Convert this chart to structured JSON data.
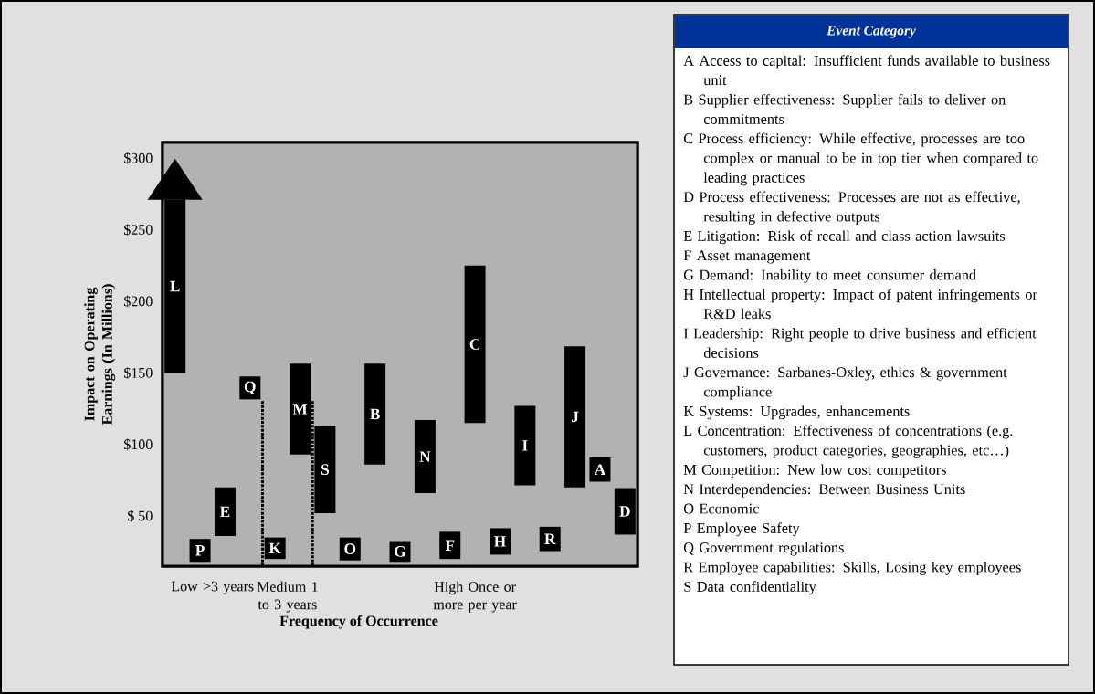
{
  "chart_data": {
    "type": "bar",
    "xlabel": "Frequency of Occurrence",
    "ylabel": "Impact on Operating Earnings (In Millions)",
    "ylim": [
      15,
      311
    ],
    "yticks": [
      {
        "value": 50,
        "label": "$ 50"
      },
      {
        "value": 100,
        "label": "$100"
      },
      {
        "value": 150,
        "label": "$150"
      },
      {
        "value": 200,
        "label": "$200"
      },
      {
        "value": 250,
        "label": "$250"
      },
      {
        "value": 300,
        "label": "$300"
      }
    ],
    "categories": [
      null,
      null,
      null,
      null,
      null,
      null,
      null,
      null,
      null,
      null,
      null,
      null,
      null,
      null,
      null,
      null,
      null,
      null,
      null
    ],
    "series": [
      {
        "color": "#000000",
        "base": [
          150,
          18,
          36,
          131.5,
          20,
          93,
          52,
          19,
          86,
          18,
          66,
          20,
          115,
          23,
          71.5,
          25.5,
          70,
          74,
          37
        ],
        "values": [
          121,
          16,
          34,
          16,
          15,
          63.5,
          61,
          16,
          70.5,
          14.5,
          51,
          19,
          110,
          18.5,
          55.5,
          17,
          98.5,
          17,
          32.5
        ],
        "value_labels": [
          "L",
          "P",
          "E",
          "Q",
          "K",
          "M",
          "S",
          "O",
          "B",
          "G",
          "N",
          "F",
          "C",
          "H",
          "I",
          "R",
          "J",
          "A",
          "D"
        ]
      }
    ],
    "legend_title": "Event Category",
    "annotations": [
      "Low >3 years",
      "Medium 1 to 3 years",
      "High Once or more per year",
      "A Access to capital: Insufficient funds available to business unit",
      "B Supplier effectiveness: Supplier fails to deliver on commitments",
      "C Process efficiency: While effective, processes are too complex or manual to be in top tier when compared to leading practices",
      "D Process effectiveness: Processes are not as effective, resulting in defective outputs",
      "E Litigation: Risk of recall and class action lawsuits",
      "F Asset management",
      "G Demand: Inability to meet consumer demand",
      "H Intellectual property: Impact of patent infringements or R&D leaks",
      "I Leadership: Right people to drive business and efficient decisions",
      "J Governance: Sarbanes-Oxley, ethics & government compliance",
      "K Systems: Upgrades, enhancements",
      "L Concentration: Effectiveness of concentrations (e.g. customers, product categories, geographies, etc…)",
      "M Competition: New low cost competitors",
      "N Interdependencies: Between Business Units",
      "O Economic",
      "P Employee Safety",
      "Q Government regulations",
      "R Employee capabilities: Skills, Losing key employees",
      "S Data confidentiality"
    ]
  }
}
